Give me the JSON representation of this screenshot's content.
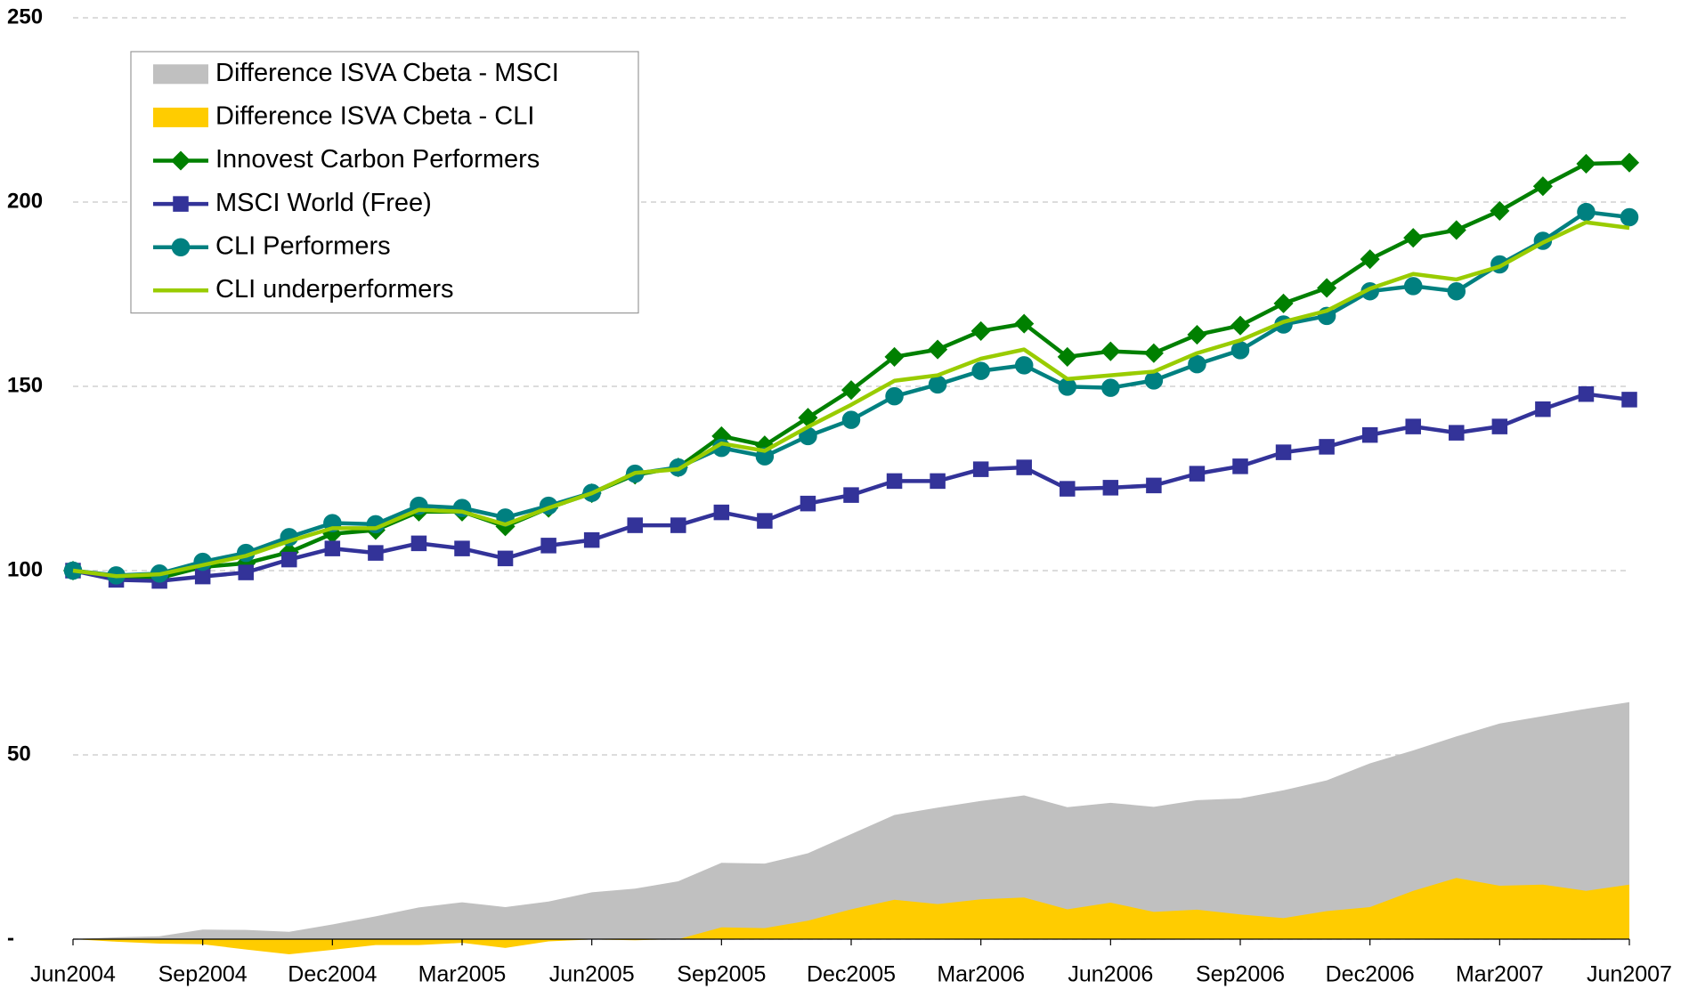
{
  "chart_data": {
    "type": "line",
    "categories": [
      "Jun2004",
      null,
      null,
      "Sep2004",
      null,
      null,
      "Dec2004",
      null,
      null,
      "Mar2005",
      null,
      null,
      "Jun2005",
      null,
      null,
      "Sep2005",
      null,
      null,
      "Dec2005",
      null,
      null,
      "Mar2006",
      null,
      null,
      "Jun2006",
      null,
      null,
      "Sep2006",
      null,
      null,
      "Dec2006",
      null,
      null,
      "Mar2007",
      null,
      null,
      "Jun2007"
    ],
    "ylim": [
      0,
      250
    ],
    "yticks": [
      {
        "value": 0,
        "label": "-"
      },
      50,
      100,
      150,
      200,
      250
    ],
    "grid": true,
    "legend": "top-left",
    "series": [
      {
        "name": "Difference ISVA Cbeta - MSCI",
        "kind": "area",
        "color": "#c0c0c0",
        "values": [
          0,
          0.5,
          0.8,
          2.6,
          2.5,
          2,
          4,
          6.2,
          8.6,
          10,
          8.7,
          10.2,
          12.7,
          13.7,
          15.7,
          20.7,
          20.5,
          23.3,
          28.5,
          33.7,
          35.7,
          37.5,
          39,
          35.8,
          37,
          35.9,
          37.7,
          38.2,
          40.4,
          43.1,
          47.7,
          51.2,
          55,
          58.5,
          60.5,
          62.5,
          64.3
        ]
      },
      {
        "name": "Difference ISVA Cbeta - CLI",
        "kind": "area",
        "color": "#ffcc00",
        "values": [
          0,
          -0.7,
          -1.2,
          -1.4,
          -2.8,
          -4.1,
          -2.9,
          -1.6,
          -1.6,
          -1,
          -2.4,
          -0.6,
          -0.1,
          -0.3,
          0,
          3.2,
          3,
          5,
          8.1,
          10.7,
          9.5,
          10.8,
          11.3,
          8.1,
          9.9,
          7.4,
          8,
          6.7,
          5.7,
          7.6,
          8.7,
          13.1,
          16.6,
          14.5,
          14.8,
          13.1,
          14.8
        ]
      },
      {
        "name": "Innovest Carbon Performers",
        "kind": "line",
        "marker": "diamond",
        "color": "#008000",
        "values": [
          100,
          98.3,
          98,
          101,
          102,
          105,
          110,
          111,
          116,
          116,
          112,
          117,
          121,
          126,
          128,
          136.5,
          134,
          141.5,
          149,
          158,
          160,
          165,
          167,
          158,
          159.5,
          159,
          164,
          166.5,
          172.5,
          176.7,
          184.5,
          190.3,
          192.4,
          197.6,
          204.3,
          210.4,
          210.7
        ]
      },
      {
        "name": "MSCI World (Free)",
        "kind": "line",
        "marker": "square",
        "color": "#333399",
        "values": [
          100,
          97.5,
          97.2,
          98.4,
          99.5,
          103,
          106,
          104.8,
          107.4,
          106,
          103.3,
          106.8,
          108.3,
          112.3,
          112.3,
          115.8,
          113.5,
          118.2,
          120.5,
          124.3,
          124.3,
          127.5,
          128,
          122.2,
          122.5,
          123.1,
          126.3,
          128.3,
          132.1,
          133.6,
          136.8,
          139.1,
          137.4,
          139.1,
          143.8,
          147.9,
          146.4
        ]
      },
      {
        "name": "CLI Performers",
        "kind": "line",
        "marker": "circle",
        "color": "#008080",
        "values": [
          100,
          98.7,
          99.2,
          102.4,
          104.8,
          109.1,
          112.9,
          112.6,
          117.6,
          117,
          114.4,
          117.6,
          121.1,
          126.3,
          128,
          133.3,
          131,
          136.5,
          140.9,
          147.3,
          150.5,
          154.2,
          155.7,
          149.9,
          149.6,
          151.6,
          156,
          159.8,
          166.8,
          169.1,
          175.8,
          177.2,
          175.8,
          183.1,
          189.5,
          197.3,
          195.9
        ]
      },
      {
        "name": "CLI underperformers",
        "kind": "line",
        "marker": "none",
        "color": "#99cc00",
        "values": [
          100,
          98.5,
          99,
          101.5,
          104,
          108,
          111.5,
          111.5,
          116.5,
          116,
          112.5,
          117,
          121,
          126.5,
          127.5,
          134.5,
          132.5,
          139,
          145,
          151.5,
          153,
          157.5,
          160,
          152,
          153,
          154,
          159,
          162.5,
          167.5,
          170.5,
          176.5,
          180.5,
          179,
          182.5,
          189,
          194.5,
          193
        ]
      }
    ]
  }
}
